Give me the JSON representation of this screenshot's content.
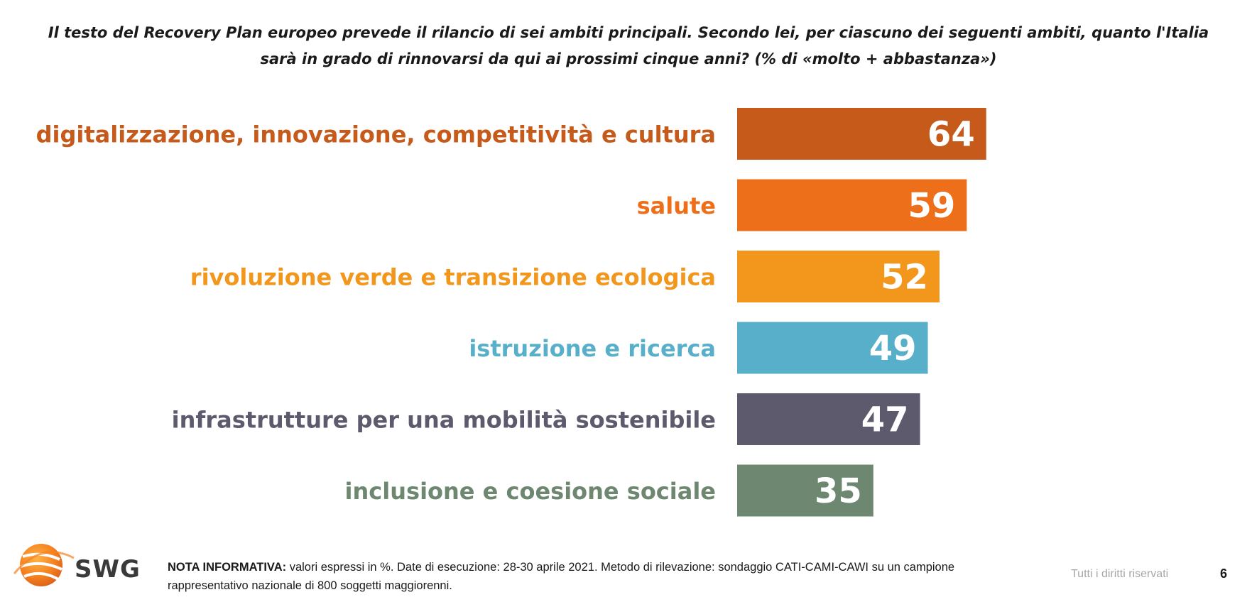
{
  "chart_data": {
    "type": "bar",
    "orientation": "horizontal",
    "title": "Il testo del Recovery Plan europeo prevede il rilancio di sei ambiti principali. Secondo lei, per ciascuno dei seguenti ambiti, quanto l'Italia sarà in grado di rinnovarsi da qui ai prossimi cinque anni? (% di «molto + abbastanza»)",
    "categories": [
      "digitalizzazione, innovazione, competitività e cultura",
      "salute",
      "rivoluzione verde e transizione ecologica",
      "istruzione e ricerca",
      "infrastrutture per una mobilità sostenibile",
      "inclusione e coesione sociale"
    ],
    "values": [
      64,
      59,
      52,
      49,
      47,
      35
    ],
    "colors": [
      "#C55A1A",
      "#EE6F1A",
      "#F3961C",
      "#58AFC9",
      "#5E5A6E",
      "#6E8770"
    ],
    "xlim": [
      0,
      100
    ],
    "grid": false,
    "legend": "none"
  },
  "footer": {
    "logo_text": "SWG",
    "note_label": "NOTA INFORMATIVA:",
    "note_text": " valori espressi in %. Date di esecuzione: 28-30 aprile 2021. Metodo di rilevazione: sondaggio CATI-CAMI-CAWI su un campione rappresentativo nazionale di 800 soggetti maggiorenni.",
    "rights": "Tutti i diritti riservati",
    "page_number": "6"
  }
}
